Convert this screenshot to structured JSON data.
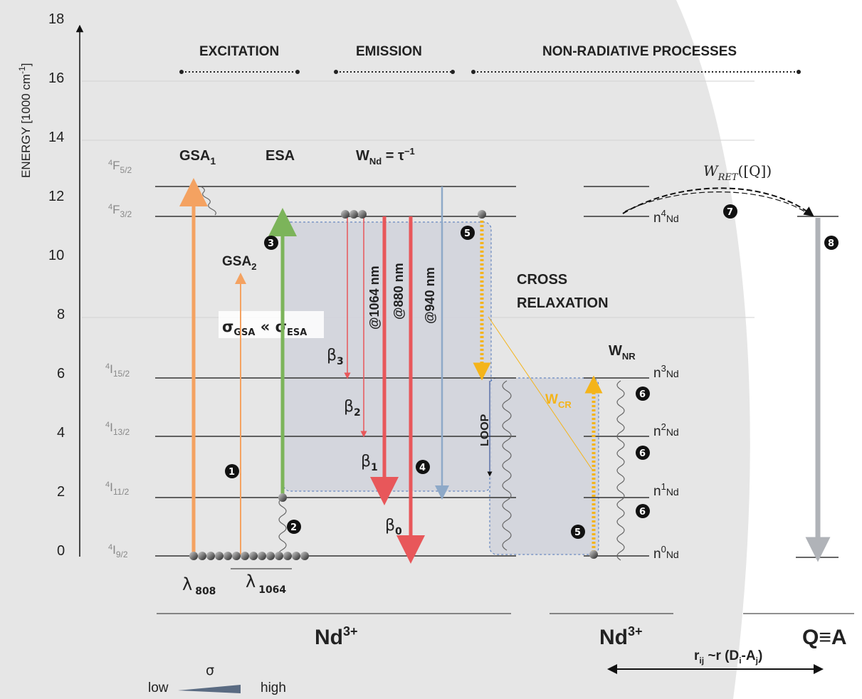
{
  "y_axis": {
    "label": "ENERGY [1000 cm",
    "label_sup": "-1",
    "label_close": "]",
    "ticks": [
      "0",
      "2",
      "4",
      "6",
      "8",
      "10",
      "12",
      "14",
      "16",
      "18"
    ]
  },
  "headers": {
    "excitation": "EXCITATION",
    "emission": "EMISSION",
    "nonrad": "NON-RADIATIVE PROCESSES"
  },
  "levels": {
    "f52": {
      "sup": "4",
      "main": "F",
      "sub": "5/2"
    },
    "f32": {
      "sup": "4",
      "main": "F",
      "sub": "3/2"
    },
    "i152": {
      "sup": "4",
      "main": "I",
      "sub": "15/2"
    },
    "i132": {
      "sup": "4",
      "main": "I",
      "sub": "13/2"
    },
    "i112": {
      "sup": "4",
      "main": "I",
      "sub": "11/2"
    },
    "i92": {
      "sup": "4",
      "main": "I",
      "sub": "9/2"
    }
  },
  "labels": {
    "gsa1_main": "GSA",
    "gsa1_sub": "1",
    "esa": "ESA",
    "wnd_main": "W",
    "wnd_sub": "Nd",
    "wnd_eq": " = τ",
    "wnd_sup": "−1",
    "gsa2_main": "GSA",
    "gsa2_sub": "2",
    "sigma_gsa": "σ",
    "sigma_gsa_sub": "GSA",
    "much_less": " « ",
    "sigma_esa": "σ",
    "sigma_esa_sub": "ESA",
    "nm1064": "@1064 nm",
    "nm880": "@880 nm",
    "nm940": "@940 nm",
    "beta3": "β",
    "beta3_sub": "3",
    "beta2": "β",
    "beta2_sub": "2",
    "beta1": "β",
    "beta1_sub": "1",
    "beta0": "β",
    "beta0_sub": "0",
    "cross1": "CROSS",
    "cross2": "RELAXATION",
    "loop": "LOOP",
    "wcr_main": "W",
    "wcr_sub": "CR",
    "wnr_main": "W",
    "wnr_sub": "NR",
    "wret": "W",
    "wret_sub": "RET",
    "wret_arg": "([Q])",
    "lambda808": "λ",
    "lambda808_sub": "808",
    "lambda1064": "λ",
    "lambda1064_sub": "1064",
    "nd_left": "Nd",
    "nd_left_sup": "3+",
    "nd_right": "Nd",
    "nd_right_sup": "3+",
    "qa": "Q≡A",
    "rij": "r",
    "rij_sub": "ij",
    "rij_rest": " ~r (D",
    "rij_di": "i",
    "rij_dash": "-A",
    "rij_aj": "j",
    "rij_close": ")",
    "sigma": "σ",
    "low": "low",
    "high": "high"
  },
  "nd_levels": [
    {
      "n": "n",
      "sup": "4",
      "sub": "Nd"
    },
    {
      "n": "n",
      "sup": "3",
      "sub": "Nd"
    },
    {
      "n": "n",
      "sup": "2",
      "sub": "Nd"
    },
    {
      "n": "n",
      "sup": "1",
      "sub": "Nd"
    },
    {
      "n": "n",
      "sup": "0",
      "sub": "Nd"
    }
  ],
  "markers": [
    "1",
    "2",
    "3",
    "4",
    "5",
    "5",
    "6",
    "6",
    "6",
    "7",
    "8"
  ],
  "colors": {
    "orange": "#f4a261",
    "green": "#7cb45a",
    "red": "#e8575a",
    "blue": "#8ea9c8",
    "yellow": "#f4b41a",
    "gray_arrow": "#b0b3b8",
    "panel": "#e6e6e6",
    "box": "#d2d4dc"
  }
}
